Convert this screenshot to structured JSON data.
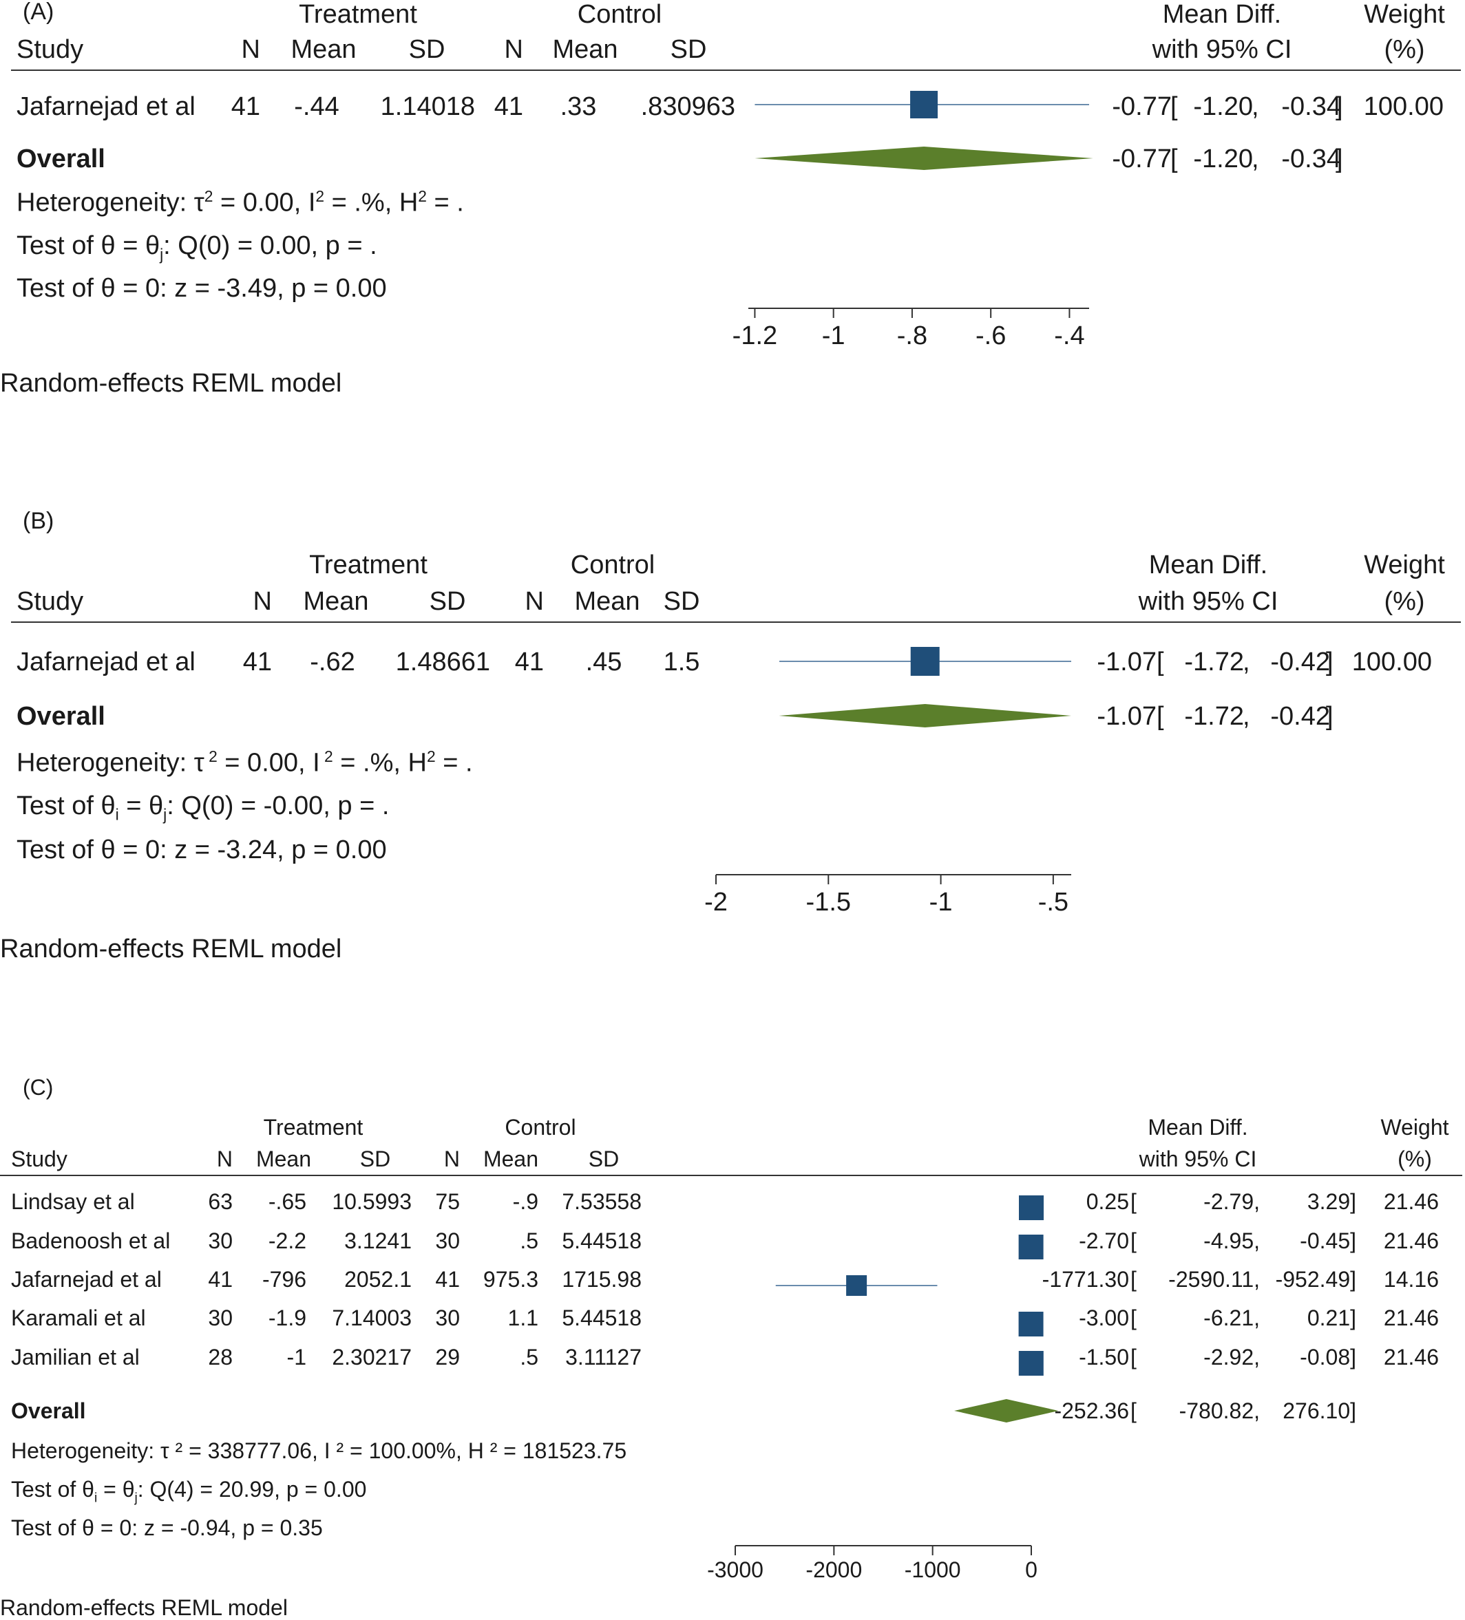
{
  "panels": [
    {
      "id": "A",
      "panel_label": "(A)",
      "header": {
        "treatment": "Treatment",
        "control": "Control",
        "study": "Study",
        "n": "N",
        "mean": "Mean",
        "sd": "SD",
        "md_line1": "Mean Diff.",
        "md_line2": "with 95% CI",
        "w_line1": "Weight",
        "w_line2": "(%)"
      },
      "rows": [
        {
          "study": "Jafarnejad et al",
          "tn": "41",
          "tmean": "-.44",
          "tsd": "1.14018",
          "cn": "41",
          "cmean": ".33",
          "csd": ".830963",
          "md": "-0.77",
          "lo": "-1.20",
          "hi": "-0.34",
          "weight": "100.00"
        }
      ],
      "overall": {
        "label": "Overall",
        "md": "-0.77",
        "lo": "-1.20",
        "hi": "-0.34"
      },
      "stats": {
        "het_pre": "Heterogeneity: ",
        "tau": "τ",
        "het_a": " = 0.00, ",
        "i": "I",
        "het_b": " = .%, ",
        "h": "H",
        "het_c": " = .",
        "test1_pre": "Test of θ = θ",
        "test1_sub": "j",
        "test1_post": ": Q(0) = 0.00, p = .",
        "test2": "Test of θ = 0: z = -3.49, p = 0.00"
      },
      "footer": "Random-effects REML model",
      "axis": {
        "ticks": [
          -1.2,
          -1,
          -0.8,
          -0.6,
          -0.4
        ],
        "tick_labels": [
          "-1.2",
          "-1",
          "-.8",
          "-.6",
          "-.4"
        ],
        "range": [
          -1.22,
          -0.35
        ]
      }
    },
    {
      "id": "B",
      "panel_label": "(B)",
      "header": {
        "treatment": "Treatment",
        "control": "Control",
        "study": "Study",
        "n": "N",
        "mean": "Mean",
        "sd": "SD",
        "md_line1": "Mean Diff.",
        "md_line2": "with 95% CI",
        "w_line1": "Weight",
        "w_line2": "(%)"
      },
      "rows": [
        {
          "study": "Jafarnejad et al",
          "tn": "41",
          "tmean": "-.62",
          "tsd": "1.48661",
          "cn": "41",
          "cmean": ".45",
          "csd": "1.5",
          "md": "-1.07",
          "lo": "-1.72",
          "hi": "-0.42",
          "weight": "100.00"
        }
      ],
      "overall": {
        "label": "Overall",
        "md": "-1.07",
        "lo": "-1.72",
        "hi": "-0.42"
      },
      "stats": {
        "het_pre": "Heterogeneity: ",
        "tau": "τ",
        "het_a": " = 0.00, ",
        "i": "I",
        "het_b": " = .%, ",
        "h": "H",
        "het_c": " = .",
        "test1_pre": "Test of θ",
        "test1_sub_i": "i",
        "test1_mid": " = θ",
        "test1_sub": "j",
        "test1_post": ": Q(0) = -0.00, p = .",
        "test2": "Test of θ = 0: z = -3.24, p = 0.00"
      },
      "footer": "Random-effects REML model",
      "axis": {
        "ticks": [
          -2,
          -1.5,
          -1,
          -0.5
        ],
        "tick_labels": [
          "-2",
          "-1.5",
          "-1",
          "-.5"
        ],
        "range": [
          -2.0,
          -0.42
        ]
      }
    },
    {
      "id": "C",
      "panel_label": "(C)",
      "header": {
        "treatment": "Treatment",
        "control": "Control",
        "study": "Study",
        "n": "N",
        "mean": "Mean",
        "sd": "SD",
        "md_line1": "Mean Diff.",
        "md_line2": "with 95% CI",
        "w_line1": "Weight",
        "w_line2": "(%)"
      },
      "rows": [
        {
          "study": "Lindsay et al",
          "tn": "63",
          "tmean": "-.65",
          "tsd": "10.5993",
          "cn": "75",
          "cmean": "-.9",
          "csd": "7.53558",
          "md": "0.25",
          "lo": "-2.79,",
          "hi": "3.29]",
          "weight": "21.46"
        },
        {
          "study": "Badenoosh et al",
          "tn": "30",
          "tmean": "-2.2",
          "tsd": "3.1241",
          "cn": "30",
          "cmean": ".5",
          "csd": "5.44518",
          "md": "-2.70",
          "lo": "-4.95,",
          "hi": "-0.45]",
          "weight": "21.46"
        },
        {
          "study": "Jafarnejad et al",
          "tn": "41",
          "tmean": "-796",
          "tsd": "2052.1",
          "cn": "41",
          "cmean": "975.3",
          "csd": "1715.98",
          "md": "-1771.30",
          "lo": "-2590.11,",
          "hi": "-952.49]",
          "weight": "14.16"
        },
        {
          "study": "Karamali et al",
          "tn": "30",
          "tmean": "-1.9",
          "tsd": "7.14003",
          "cn": "30",
          "cmean": "1.1",
          "csd": "5.44518",
          "md": "-3.00",
          "lo": "-6.21,",
          "hi": "0.21]",
          "weight": "21.46"
        },
        {
          "study": "Jamilian et al",
          "tn": "28",
          "tmean": "-1",
          "tsd": "2.30217",
          "cn": "29",
          "cmean": ".5",
          "csd": "3.11127",
          "md": "-1.50",
          "lo": "-2.92,",
          "hi": "-0.08]",
          "weight": "21.46"
        }
      ],
      "overall": {
        "label": "Overall",
        "md": "-252.36",
        "lo": "-780.82,",
        "hi": "276.10]"
      },
      "stats": {
        "het": "Heterogeneity: τ ² = 338777.06, I ² = 100.00%, H ² = 181523.75",
        "test1_pre": "Test of θ",
        "test1_sub_i": "i",
        "test1_mid": " = θ",
        "test1_sub": "j",
        "test1_post": ": Q(4) = 20.99, p = 0.00",
        "test2": "Test of θ = 0: z = -0.94, p = 0.35"
      },
      "footer": "Random-effects REML model",
      "axis": {
        "ticks": [
          -3000,
          -2000,
          -1000,
          0
        ],
        "tick_labels": [
          "-3000",
          "-2000",
          "-1000",
          "0"
        ],
        "range": [
          -3000,
          0
        ]
      }
    }
  ],
  "chart_data": [
    {
      "type": "forest",
      "panel": "A",
      "studies": [
        {
          "name": "Jafarnejad et al",
          "md": -0.77,
          "ci": [
            -1.2,
            -0.34
          ],
          "weight": 100.0
        }
      ],
      "overall": {
        "md": -0.77,
        "ci": [
          -1.2,
          -0.34
        ]
      },
      "xlim": [
        -1.22,
        -0.35
      ],
      "xticks": [
        -1.2,
        -1,
        -0.8,
        -0.6,
        -0.4
      ]
    },
    {
      "type": "forest",
      "panel": "B",
      "studies": [
        {
          "name": "Jafarnejad et al",
          "md": -1.07,
          "ci": [
            -1.72,
            -0.42
          ],
          "weight": 100.0
        }
      ],
      "overall": {
        "md": -1.07,
        "ci": [
          -1.72,
          -0.42
        ]
      },
      "xlim": [
        -2.0,
        -0.42
      ],
      "xticks": [
        -2,
        -1.5,
        -1,
        -0.5
      ]
    },
    {
      "type": "forest",
      "panel": "C",
      "studies": [
        {
          "name": "Lindsay et al",
          "md": 0.25,
          "ci": [
            -2.79,
            3.29
          ],
          "weight": 21.46
        },
        {
          "name": "Badenoosh et al",
          "md": -2.7,
          "ci": [
            -4.95,
            -0.45
          ],
          "weight": 21.46
        },
        {
          "name": "Jafarnejad et al",
          "md": -1771.3,
          "ci": [
            -2590.11,
            -952.49
          ],
          "weight": 14.16
        },
        {
          "name": "Karamali et al",
          "md": -3.0,
          "ci": [
            -6.21,
            0.21
          ],
          "weight": 21.46
        },
        {
          "name": "Jamilian et al",
          "md": -1.5,
          "ci": [
            -2.92,
            -0.08
          ],
          "weight": 21.46
        }
      ],
      "overall": {
        "md": -252.36,
        "ci": [
          -780.82,
          276.1
        ]
      },
      "xlim": [
        -3000,
        0
      ],
      "xticks": [
        -3000,
        -2000,
        -1000,
        0
      ]
    }
  ],
  "colors": {
    "marker": "#1f4e79",
    "diamond": "#5b7f2b",
    "ci_line": "#6a8cad",
    "rule": "#333333"
  }
}
